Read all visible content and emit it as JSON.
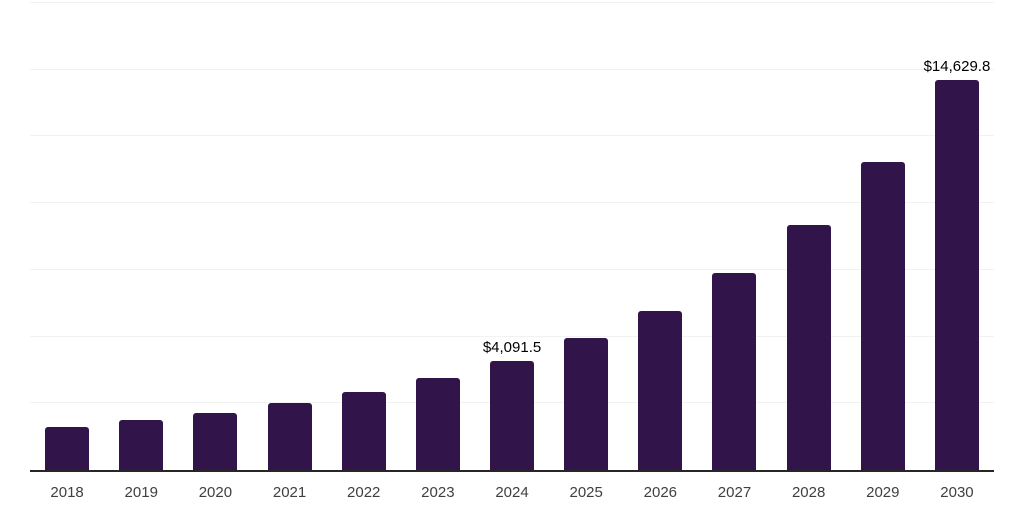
{
  "chart_data": {
    "type": "bar",
    "title": "",
    "xlabel": "",
    "ylabel": "",
    "categories": [
      "2018",
      "2019",
      "2020",
      "2021",
      "2022",
      "2023",
      "2024",
      "2025",
      "2026",
      "2027",
      "2028",
      "2029",
      "2030"
    ],
    "values": [
      1610,
      1875,
      2150,
      2510,
      2915,
      3440,
      4091.5,
      4950,
      5975,
      7375,
      9175,
      11560,
      14629.8
    ],
    "data_labels": {
      "2024": "$4,091.5",
      "2030": "$14,629.8"
    },
    "ylim": [
      0,
      17500
    ],
    "gridline_step": 2500,
    "grid": "horizontal-only",
    "legend": "none",
    "colors": {
      "bar": "#31154a",
      "axis_line": "#262626",
      "gridline": "#f2f2f2",
      "data_label": "#000000",
      "tick_label": "#3f3f3f",
      "background": "#ffffff"
    }
  }
}
